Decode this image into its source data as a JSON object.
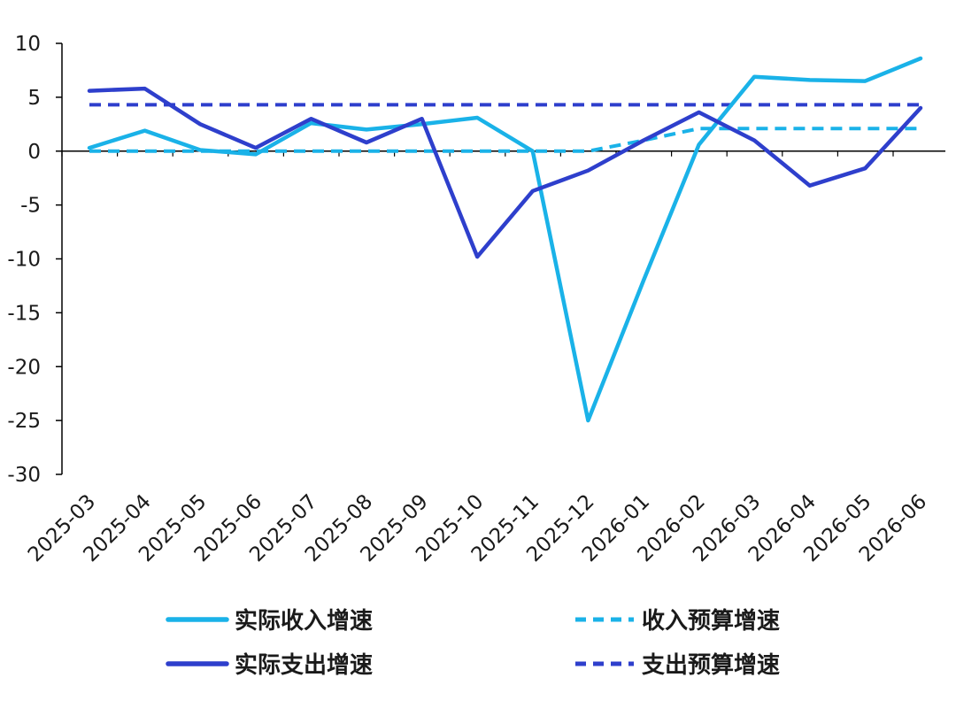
{
  "chart_data": {
    "type": "line",
    "categories": [
      "2025-03",
      "2025-04",
      "2025-05",
      "2025-06",
      "2025-07",
      "2025-08",
      "2025-09",
      "2025-10",
      "2025-11",
      "2025-12",
      "2026-01",
      "2026-02",
      "2026-03",
      "2026-04",
      "2026-05",
      "2026-06"
    ],
    "ylim": [
      -30,
      10
    ],
    "yticks": [
      10,
      5,
      0,
      -5,
      -10,
      -15,
      -20,
      -25,
      -30
    ],
    "grid": false,
    "legend_position": "bottom",
    "series": [
      {
        "name": "实际收入增速",
        "style": "solid",
        "color": "#1ab2e8",
        "values": [
          0.3,
          1.9,
          0.1,
          -0.3,
          2.6,
          2.0,
          2.5,
          3.1,
          0.0,
          -25.0,
          -12.0,
          0.6,
          6.9,
          6.6,
          6.5,
          8.6
        ]
      },
      {
        "name": "收入预算增速",
        "style": "dashed",
        "color": "#1ab2e8",
        "values": [
          0.0,
          0.0,
          0.0,
          0.0,
          0.0,
          0.0,
          0.0,
          0.0,
          0.0,
          0.0,
          1.0,
          2.1,
          2.1,
          2.1,
          2.1,
          2.1
        ]
      },
      {
        "name": "实际支出增速",
        "style": "solid",
        "color": "#2e3fcc",
        "values": [
          5.6,
          5.8,
          2.5,
          0.3,
          3.0,
          0.8,
          3.0,
          -9.8,
          -3.7,
          -1.8,
          1.0,
          3.6,
          1.0,
          -3.2,
          -1.6,
          4.0
        ]
      },
      {
        "name": "支出预算增速",
        "style": "dashed",
        "color": "#2e3fcc",
        "values": [
          4.3,
          4.3,
          4.3,
          4.3,
          4.3,
          4.3,
          4.3,
          4.3,
          4.3,
          4.3,
          4.3,
          4.3,
          4.3,
          4.3,
          4.3,
          4.3
        ]
      }
    ],
    "legend_order": [
      "实际收入增速",
      "收入预算增速",
      "实际支出增速",
      "支出预算增速"
    ]
  }
}
